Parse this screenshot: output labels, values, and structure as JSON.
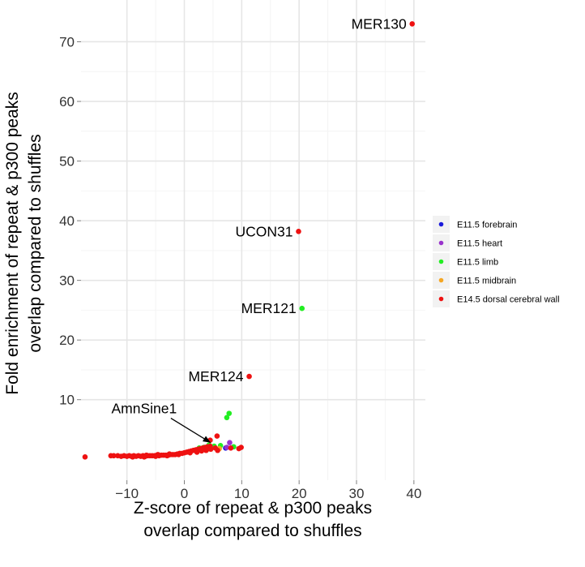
{
  "chart_data": {
    "type": "scatter",
    "title": "",
    "xlabel": [
      "Z-score of repeat & p300 peaks",
      "overlap compared to shuffles"
    ],
    "ylabel": [
      "Fold enrichment of repeat & p300 peaks",
      "overlap compared to shuffles"
    ],
    "xlim": [
      -18,
      42
    ],
    "ylim": [
      -3.5,
      77
    ],
    "xticks": [
      -10,
      0,
      10,
      20,
      30,
      40
    ],
    "xtick_labels": [
      "−10",
      "0",
      "10",
      "20",
      "30",
      "40"
    ],
    "yticks": [
      10,
      20,
      30,
      40,
      50,
      60,
      70
    ],
    "ytick_labels": [
      "10",
      "20",
      "30",
      "40",
      "50",
      "60",
      "70"
    ],
    "grid": true,
    "legend_position": "right",
    "series": [
      {
        "name": "E11.5 forebrain",
        "color": "#1a1adb",
        "points": [
          [
            7.2,
            1.9
          ]
        ]
      },
      {
        "name": "E11.5 heart",
        "color": "#9933cc",
        "points": [
          [
            7.9,
            2.8
          ],
          [
            7.4,
            2.0
          ]
        ]
      },
      {
        "name": "E11.5 limb",
        "color": "#22ee22",
        "points": [
          [
            20.5,
            25.3
          ],
          [
            7.8,
            7.7
          ],
          [
            7.4,
            7.0
          ],
          [
            4.3,
            2.4
          ],
          [
            3.4,
            2.0
          ],
          [
            2.6,
            1.9
          ],
          [
            5.2,
            2.2
          ],
          [
            6.3,
            2.3
          ],
          [
            8.6,
            2.1
          ],
          [
            4.0,
            1.7
          ]
        ]
      },
      {
        "name": "E11.5 midbrain",
        "color": "#f5a623",
        "points": [
          [
            3.1,
            1.6
          ],
          [
            6.1,
            1.8
          ]
        ]
      },
      {
        "name": "E14.5 dorsal cerebral wall",
        "color": "#ee1111",
        "points": [
          [
            39.7,
            73.0
          ],
          [
            19.9,
            38.2
          ],
          [
            11.3,
            13.9
          ],
          [
            5.7,
            3.9
          ],
          [
            4.5,
            3.2
          ],
          [
            9.9,
            2.0
          ],
          [
            9.5,
            1.8
          ],
          [
            8.1,
            1.9
          ],
          [
            -17.3,
            0.4
          ],
          [
            -12.8,
            0.6
          ],
          [
            -12.3,
            0.6
          ],
          [
            -11.6,
            0.6
          ],
          [
            -11.0,
            0.5
          ],
          [
            -10.5,
            0.6
          ],
          [
            -10.0,
            0.5
          ],
          [
            -9.6,
            0.6
          ],
          [
            -9.2,
            0.5
          ],
          [
            -8.8,
            0.6
          ],
          [
            -8.4,
            0.5
          ],
          [
            -8.0,
            0.6
          ],
          [
            -7.6,
            0.5
          ],
          [
            -7.2,
            0.6
          ],
          [
            -6.8,
            0.5
          ],
          [
            -6.4,
            0.6
          ],
          [
            -6.0,
            0.6
          ],
          [
            -5.6,
            0.6
          ],
          [
            -5.2,
            0.6
          ],
          [
            -4.8,
            0.7
          ],
          [
            -4.4,
            0.6
          ],
          [
            -4.0,
            0.7
          ],
          [
            -3.6,
            0.7
          ],
          [
            -3.2,
            0.7
          ],
          [
            -2.8,
            0.7
          ],
          [
            -2.4,
            0.8
          ],
          [
            -2.0,
            0.8
          ],
          [
            -1.6,
            0.8
          ],
          [
            -1.2,
            0.9
          ],
          [
            -0.8,
            1.0
          ],
          [
            -0.4,
            1.0
          ],
          [
            0.0,
            1.1
          ],
          [
            0.4,
            1.2
          ],
          [
            0.8,
            1.3
          ],
          [
            1.2,
            1.4
          ],
          [
            1.6,
            1.5
          ],
          [
            2.0,
            1.6
          ],
          [
            2.4,
            1.7
          ],
          [
            2.8,
            1.8
          ],
          [
            3.2,
            1.9
          ],
          [
            3.6,
            2.0
          ],
          [
            4.0,
            2.1
          ],
          [
            4.5,
            2.2
          ],
          [
            -9.0,
            0.4
          ],
          [
            -7.0,
            0.4
          ],
          [
            -5.0,
            0.5
          ],
          [
            -3.0,
            0.6
          ],
          [
            -1.0,
            0.8
          ],
          [
            1.0,
            1.1
          ],
          [
            2.2,
            1.2
          ],
          [
            3.0,
            1.4
          ],
          [
            3.8,
            1.5
          ],
          [
            4.6,
            1.7
          ],
          [
            5.4,
            1.9
          ],
          [
            5.8,
            1.5
          ],
          [
            -6.6,
            0.7
          ],
          [
            -4.6,
            0.8
          ],
          [
            -2.6,
            0.9
          ]
        ]
      }
    ],
    "annotations": [
      {
        "text": "MER130",
        "x": 39.7,
        "y": 73.0
      },
      {
        "text": "UCON31",
        "x": 19.9,
        "y": 38.2
      },
      {
        "text": "MER121",
        "x": 20.5,
        "y": 25.3
      },
      {
        "text": "MER124",
        "x": 11.3,
        "y": 13.9
      },
      {
        "text": "AmnSine1",
        "x": 5.7,
        "y": 3.9,
        "arrow": true
      }
    ]
  }
}
